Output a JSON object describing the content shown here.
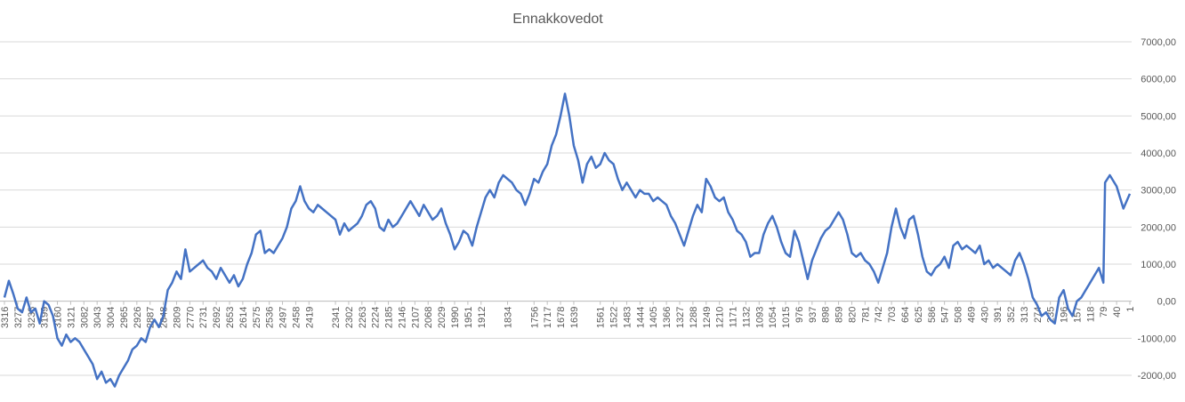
{
  "chart_data": {
    "type": "line",
    "title": "Ennakkovedot",
    "x": [
      3316,
      3303,
      3290,
      3277,
      3264,
      3251,
      3238,
      3225,
      3212,
      3199,
      3186,
      3173,
      3160,
      3147,
      3134,
      3121,
      3108,
      3095,
      3082,
      3069,
      3056,
      3043,
      3030,
      3017,
      3004,
      2991,
      2978,
      2965,
      2952,
      2939,
      2926,
      2913,
      2900,
      2887,
      2874,
      2861,
      2848,
      2835,
      2822,
      2809,
      2796,
      2783,
      2770,
      2757,
      2744,
      2731,
      2718,
      2705,
      2692,
      2679,
      2666,
      2653,
      2640,
      2627,
      2614,
      2601,
      2588,
      2575,
      2562,
      2549,
      2536,
      2523,
      2510,
      2497,
      2484,
      2471,
      2458,
      2445,
      2432,
      2419,
      2406,
      2393,
      2380,
      2367,
      2354,
      2341,
      2328,
      2315,
      2302,
      2289,
      2276,
      2263,
      2250,
      2237,
      2224,
      2211,
      2198,
      2185,
      2172,
      2159,
      2146,
      2133,
      2120,
      2107,
      2094,
      2081,
      2068,
      2055,
      2042,
      2029,
      2016,
      2003,
      1990,
      1977,
      1964,
      1951,
      1938,
      1925,
      1912,
      1899,
      1886,
      1873,
      1860,
      1847,
      1834,
      1821,
      1808,
      1795,
      1782,
      1769,
      1756,
      1743,
      1730,
      1717,
      1704,
      1691,
      1678,
      1665,
      1652,
      1639,
      1626,
      1613,
      1600,
      1587,
      1574,
      1561,
      1548,
      1535,
      1522,
      1509,
      1496,
      1483,
      1470,
      1457,
      1444,
      1431,
      1418,
      1405,
      1392,
      1379,
      1366,
      1353,
      1340,
      1327,
      1314,
      1301,
      1288,
      1275,
      1262,
      1249,
      1236,
      1223,
      1210,
      1197,
      1184,
      1171,
      1158,
      1145,
      1132,
      1119,
      1106,
      1093,
      1080,
      1067,
      1054,
      1041,
      1028,
      1015,
      1002,
      989,
      976,
      963,
      950,
      937,
      924,
      911,
      898,
      885,
      872,
      859,
      846,
      833,
      820,
      807,
      794,
      781,
      768,
      755,
      742,
      729,
      716,
      703,
      690,
      677,
      664,
      651,
      638,
      625,
      612,
      599,
      586,
      573,
      560,
      547,
      534,
      521,
      508,
      495,
      482,
      469,
      456,
      443,
      430,
      417,
      404,
      391,
      378,
      365,
      352,
      339,
      326,
      313,
      300,
      287,
      274,
      261,
      248,
      235,
      222,
      209,
      196,
      183,
      170,
      157,
      144,
      131,
      118,
      105,
      92,
      79,
      74,
      60,
      40,
      20,
      1
    ],
    "series": [
      {
        "color": "#4472c4",
        "values": [
          100,
          550,
          200,
          -200,
          -300,
          100,
          -300,
          -200,
          -600,
          0,
          -100,
          -400,
          -1000,
          -1200,
          -900,
          -1100,
          -1000,
          -1100,
          -1300,
          -1500,
          -1700,
          -2100,
          -1900,
          -2200,
          -2100,
          -2300,
          -2000,
          -1800,
          -1600,
          -1300,
          -1200,
          -1000,
          -1100,
          -700,
          -500,
          -700,
          -400,
          300,
          500,
          800,
          600,
          1400,
          800,
          900,
          1000,
          1100,
          900,
          800,
          600,
          900,
          700,
          500,
          700,
          400,
          600,
          1000,
          1300,
          1800,
          1900,
          1300,
          1400,
          1300,
          1500,
          1700,
          2000,
          2500,
          2700,
          3100,
          2700,
          2500,
          2400,
          2600,
          2500,
          2400,
          2300,
          2200,
          1800,
          2100,
          1900,
          2000,
          2100,
          2300,
          2600,
          2700,
          2500,
          2000,
          1900,
          2200,
          2000,
          2100,
          2300,
          2500,
          2700,
          2500,
          2300,
          2600,
          2400,
          2200,
          2300,
          2500,
          2100,
          1800,
          1400,
          1600,
          1900,
          1800,
          1500,
          2000,
          2400,
          2800,
          3000,
          2800,
          3200,
          3400,
          3300,
          3200,
          3000,
          2900,
          2600,
          2900,
          3300,
          3200,
          3500,
          3700,
          4200,
          4500,
          5000,
          5600,
          5000,
          4200,
          3800,
          3200,
          3700,
          3900,
          3600,
          3700,
          4000,
          3800,
          3700,
          3300,
          3000,
          3200,
          3000,
          2800,
          3000,
          2900,
          2900,
          2700,
          2800,
          2700,
          2600,
          2300,
          2100,
          1800,
          1500,
          1900,
          2300,
          2600,
          2400,
          3300,
          3100,
          2800,
          2700,
          2800,
          2400,
          2200,
          1900,
          1800,
          1600,
          1200,
          1300,
          1300,
          1800,
          2100,
          2300,
          2000,
          1600,
          1300,
          1200,
          1900,
          1600,
          1100,
          600,
          1100,
          1400,
          1700,
          1900,
          2000,
          2200,
          2400,
          2200,
          1800,
          1300,
          1200,
          1300,
          1100,
          1000,
          800,
          500,
          900,
          1300,
          2000,
          2500,
          2000,
          1700,
          2200,
          2300,
          1800,
          1200,
          800,
          700,
          900,
          1000,
          1200,
          900,
          1500,
          1600,
          1400,
          1500,
          1400,
          1300,
          1500,
          1000,
          1100,
          900,
          1000,
          900,
          800,
          700,
          1100,
          1300,
          1000,
          600,
          100,
          -100,
          -400,
          -300,
          -500,
          -600,
          100,
          300,
          -200,
          -400,
          0,
          100,
          300,
          500,
          700,
          900,
          500,
          3200,
          3400,
          3100,
          2500,
          2900
        ]
      }
    ],
    "xlim": [
      3316,
      1
    ],
    "xticks": [
      3316,
      3277,
      3238,
      3199,
      3160,
      3121,
      3082,
      3043,
      3004,
      2965,
      2926,
      2887,
      2848,
      2809,
      2770,
      2731,
      2692,
      2653,
      2614,
      2575,
      2536,
      2497,
      2458,
      2419,
      2341,
      2302,
      2263,
      2224,
      2185,
      2146,
      2107,
      2068,
      2029,
      1990,
      1951,
      1912,
      1834,
      1756,
      1717,
      1678,
      1639,
      1561,
      1522,
      1483,
      1444,
      1405,
      1366,
      1327,
      1288,
      1249,
      1210,
      1171,
      1132,
      1093,
      1054,
      1015,
      976,
      937,
      898,
      859,
      820,
      781,
      742,
      703,
      664,
      625,
      586,
      547,
      508,
      469,
      430,
      391,
      352,
      313,
      274,
      235,
      196,
      157,
      118,
      79,
      40,
      1
    ],
    "ylim": [
      -2000,
      7000
    ],
    "yticks": [
      {
        "value": -2000,
        "label": "-2000,00"
      },
      {
        "value": -1000,
        "label": "-1000,00"
      },
      {
        "value": 0,
        "label": "0,00"
      },
      {
        "value": 1000,
        "label": "1000,00"
      },
      {
        "value": 2000,
        "label": "2000,00"
      },
      {
        "value": 3000,
        "label": "3000,00"
      },
      {
        "value": 4000,
        "label": "4000,00"
      },
      {
        "value": 5000,
        "label": "5000,00"
      },
      {
        "value": 6000,
        "label": "6000,00"
      },
      {
        "value": 7000,
        "label": "7000,00"
      }
    ],
    "grid": true
  }
}
